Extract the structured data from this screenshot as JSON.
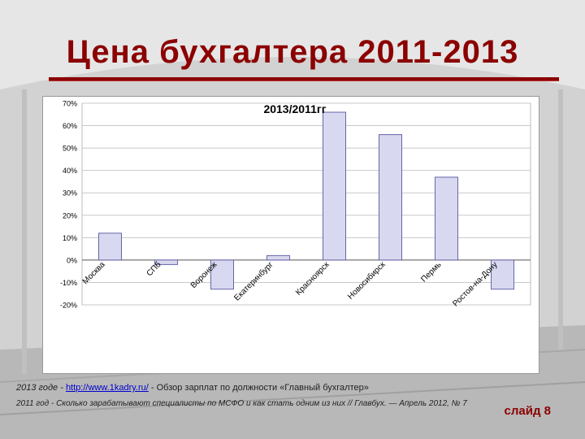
{
  "slide": {
    "title": "Цена бухгалтера 2011-2013",
    "footer_line1_prefix": "2013 годе -",
    "footer_line1_link": "http://www.1kadry.ru/",
    "footer_line1_suffix": "- Обзор зарплат по должности «Главный бухгалтер»",
    "footer_line2": "2011 год - Сколько зарабатывают специалисты по МСФО и как стать одним из них // Главбух. — Апрель 2012, № 7",
    "slide_number": "слайд 8"
  },
  "colors": {
    "title": "#8b0000",
    "bar_fill": "#d8d8f0",
    "bar_stroke": "#6666aa"
  },
  "chart_data": {
    "type": "bar",
    "title": "2013/2011гг",
    "categories": [
      "Москва",
      "СПб",
      "Воронеж",
      "Екатеринбург",
      "Красноярск",
      "Новосибирск",
      "Пермь",
      "Ростов-на-Дону"
    ],
    "values": [
      12,
      -2,
      -13,
      2,
      66,
      56,
      37,
      -13
    ],
    "ylim": [
      -20,
      70
    ],
    "yticks": [
      "70%",
      "60%",
      "50%",
      "40%",
      "30%",
      "20%",
      "10%",
      "0%",
      "-10%",
      "-20%"
    ],
    "ytick_values": [
      70,
      60,
      50,
      40,
      30,
      20,
      10,
      0,
      -10,
      -20
    ],
    "xlabel": "",
    "ylabel": "",
    "grid": true,
    "legend": "none"
  }
}
